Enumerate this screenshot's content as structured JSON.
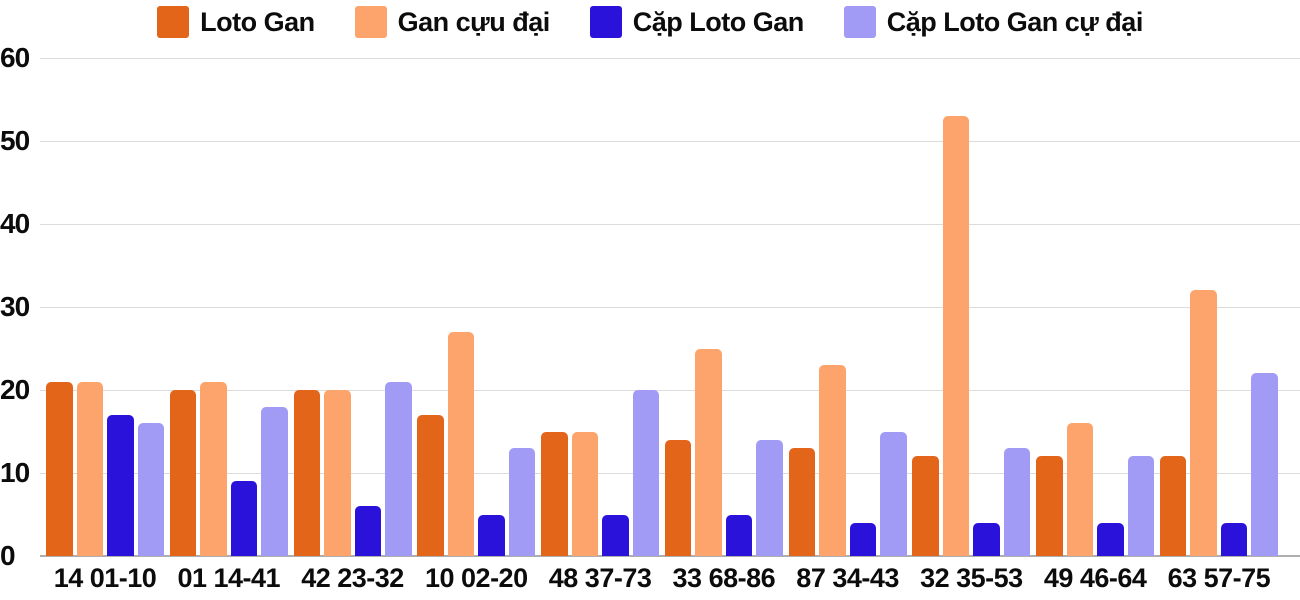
{
  "chart_data": {
    "type": "bar",
    "categories": [
      "14 01-10",
      "01 14-41",
      "42 23-32",
      "10 02-20",
      "48 37-73",
      "33 68-86",
      "87 34-43",
      "32 35-53",
      "49 46-64",
      "63 57-75"
    ],
    "series": [
      {
        "name": "Loto Gan",
        "color": "#e2651a",
        "values": [
          21,
          20,
          20,
          17,
          15,
          14,
          13,
          12,
          12,
          12
        ]
      },
      {
        "name": "Gan cựu đại",
        "color": "#fca46b",
        "values": [
          21,
          21,
          20,
          27,
          15,
          25,
          23,
          53,
          16,
          32
        ]
      },
      {
        "name": "Cặp Loto Gan",
        "color": "#2a12da",
        "values": [
          17,
          9,
          6,
          5,
          5,
          5,
          4,
          4,
          4,
          4
        ]
      },
      {
        "name": "Cặp Loto Gan cự đại",
        "color": "#a29bf6",
        "values": [
          16,
          18,
          21,
          13,
          20,
          14,
          15,
          13,
          12,
          22
        ]
      }
    ],
    "y_ticks": [
      0,
      10,
      20,
      30,
      40,
      50,
      60
    ],
    "ylim": [
      0,
      60
    ],
    "grid": true,
    "legend_position": "top",
    "background": "#ffffff",
    "gridline_color": "#dcdcdc",
    "baseline_color": "#aeaeae",
    "text_color": "#0c0c0c"
  }
}
